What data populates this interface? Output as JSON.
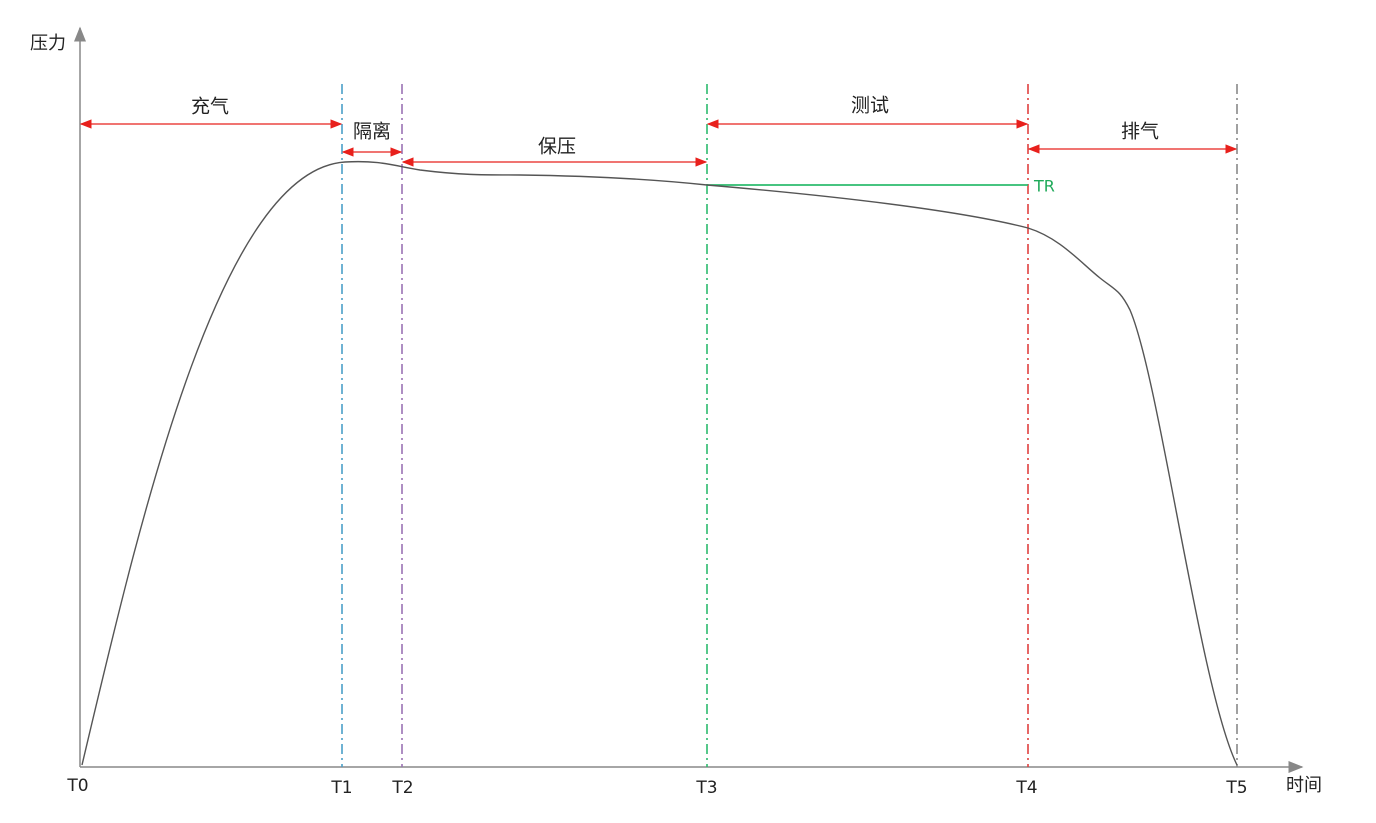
{
  "axes": {
    "y_label": "压力",
    "x_label": "时间"
  },
  "time_points": [
    "T0",
    "T1",
    "T2",
    "T3",
    "T4",
    "T5"
  ],
  "phases": [
    "充气",
    "隔离",
    "保压",
    "测试",
    "排气"
  ],
  "threshold_label": "TR"
}
